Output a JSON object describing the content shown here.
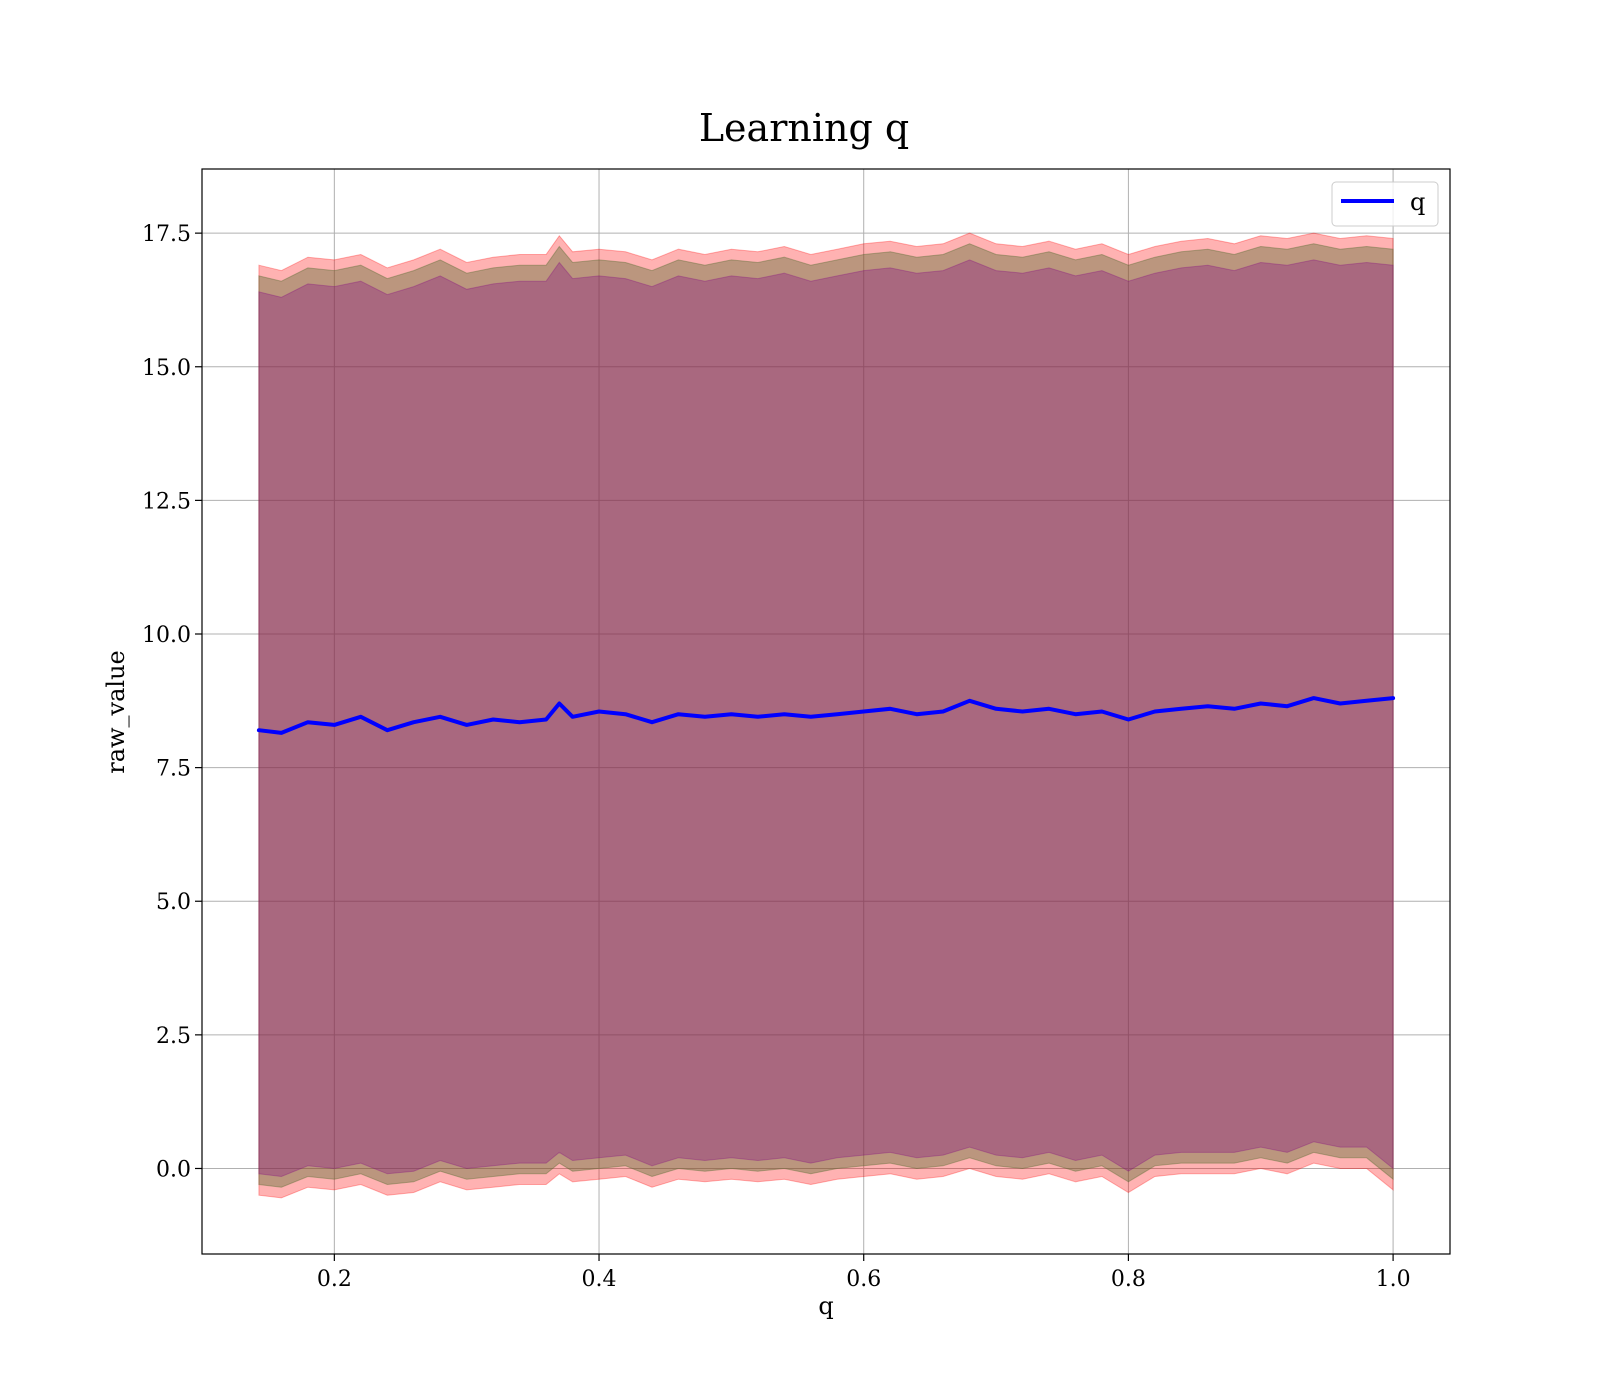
{
  "chart_data": {
    "type": "line",
    "title": "Learning q",
    "xlabel": "q",
    "ylabel": "raw_value",
    "xlim": [
      0.1,
      1.043
    ],
    "ylim": [
      -1.6,
      18.7
    ],
    "x_ticks": [
      0.2,
      0.4,
      0.6,
      0.8,
      1.0
    ],
    "x_tick_labels": [
      "0.2",
      "0.4",
      "0.6",
      "0.8",
      "1.0"
    ],
    "y_ticks": [
      0.0,
      2.5,
      5.0,
      7.5,
      10.0,
      12.5,
      15.0,
      17.5
    ],
    "y_tick_labels": [
      "0.0",
      "2.5",
      "5.0",
      "7.5",
      "10.0",
      "12.5",
      "15.0",
      "17.5"
    ],
    "grid": true,
    "legend_position": "top-right",
    "series": [
      {
        "name": "q",
        "color": "#0000ff",
        "x": [
          0.143,
          0.16,
          0.18,
          0.2,
          0.22,
          0.24,
          0.26,
          0.28,
          0.3,
          0.32,
          0.34,
          0.36,
          0.37,
          0.38,
          0.4,
          0.42,
          0.44,
          0.46,
          0.48,
          0.5,
          0.52,
          0.54,
          0.56,
          0.58,
          0.6,
          0.62,
          0.64,
          0.66,
          0.68,
          0.7,
          0.72,
          0.74,
          0.76,
          0.78,
          0.8,
          0.82,
          0.84,
          0.86,
          0.88,
          0.9,
          0.92,
          0.94,
          0.96,
          0.98,
          1.0
        ],
        "y": [
          8.2,
          8.15,
          8.35,
          8.3,
          8.45,
          8.2,
          8.35,
          8.45,
          8.3,
          8.4,
          8.35,
          8.4,
          8.7,
          8.45,
          8.55,
          8.5,
          8.35,
          8.5,
          8.45,
          8.5,
          8.45,
          8.5,
          8.45,
          8.5,
          8.55,
          8.6,
          8.5,
          8.55,
          8.75,
          8.6,
          8.55,
          8.6,
          8.5,
          8.55,
          8.4,
          8.55,
          8.6,
          8.65,
          8.6,
          8.7,
          8.65,
          8.8,
          8.7,
          8.75,
          8.8
        ]
      }
    ],
    "bands": [
      {
        "color": "#ff0000",
        "opacity": 0.3,
        "x": [
          0.143,
          0.16,
          0.18,
          0.2,
          0.22,
          0.24,
          0.26,
          0.28,
          0.3,
          0.32,
          0.34,
          0.36,
          0.37,
          0.38,
          0.4,
          0.42,
          0.44,
          0.46,
          0.48,
          0.5,
          0.52,
          0.54,
          0.56,
          0.58,
          0.6,
          0.62,
          0.64,
          0.66,
          0.68,
          0.7,
          0.72,
          0.74,
          0.76,
          0.78,
          0.8,
          0.82,
          0.84,
          0.86,
          0.88,
          0.9,
          0.92,
          0.94,
          0.96,
          0.98,
          1.0
        ],
        "lower": [
          -0.5,
          -0.55,
          -0.35,
          -0.4,
          -0.3,
          -0.5,
          -0.45,
          -0.25,
          -0.4,
          -0.35,
          -0.3,
          -0.3,
          -0.1,
          -0.25,
          -0.2,
          -0.15,
          -0.35,
          -0.2,
          -0.25,
          -0.2,
          -0.25,
          -0.2,
          -0.3,
          -0.2,
          -0.15,
          -0.1,
          -0.2,
          -0.15,
          0.0,
          -0.15,
          -0.2,
          -0.1,
          -0.25,
          -0.15,
          -0.45,
          -0.15,
          -0.1,
          -0.1,
          -0.1,
          0.0,
          -0.1,
          0.1,
          0.0,
          0.0,
          -0.4
        ],
        "upper": [
          16.9,
          16.8,
          17.05,
          17.0,
          17.1,
          16.85,
          17.0,
          17.2,
          16.95,
          17.05,
          17.1,
          17.1,
          17.45,
          17.15,
          17.2,
          17.15,
          17.0,
          17.2,
          17.1,
          17.2,
          17.15,
          17.25,
          17.1,
          17.2,
          17.3,
          17.35,
          17.25,
          17.3,
          17.5,
          17.3,
          17.25,
          17.35,
          17.2,
          17.3,
          17.1,
          17.25,
          17.35,
          17.4,
          17.3,
          17.45,
          17.4,
          17.5,
          17.4,
          17.45,
          17.4
        ]
      },
      {
        "color": "#556b2f",
        "opacity": 0.4,
        "x": [
          0.143,
          0.16,
          0.18,
          0.2,
          0.22,
          0.24,
          0.26,
          0.28,
          0.3,
          0.32,
          0.34,
          0.36,
          0.37,
          0.38,
          0.4,
          0.42,
          0.44,
          0.46,
          0.48,
          0.5,
          0.52,
          0.54,
          0.56,
          0.58,
          0.6,
          0.62,
          0.64,
          0.66,
          0.68,
          0.7,
          0.72,
          0.74,
          0.76,
          0.78,
          0.8,
          0.82,
          0.84,
          0.86,
          0.88,
          0.9,
          0.92,
          0.94,
          0.96,
          0.98,
          1.0
        ],
        "lower": [
          -0.3,
          -0.35,
          -0.15,
          -0.2,
          -0.1,
          -0.3,
          -0.25,
          -0.05,
          -0.2,
          -0.15,
          -0.1,
          -0.1,
          0.1,
          -0.05,
          0.0,
          0.05,
          -0.15,
          0.0,
          -0.05,
          0.0,
          -0.05,
          0.0,
          -0.1,
          0.0,
          0.05,
          0.1,
          0.0,
          0.05,
          0.2,
          0.05,
          0.0,
          0.1,
          -0.05,
          0.05,
          -0.25,
          0.05,
          0.1,
          0.1,
          0.1,
          0.2,
          0.1,
          0.3,
          0.2,
          0.2,
          -0.2
        ],
        "upper": [
          16.7,
          16.6,
          16.85,
          16.8,
          16.9,
          16.65,
          16.8,
          17.0,
          16.75,
          16.85,
          16.9,
          16.9,
          17.25,
          16.95,
          17.0,
          16.95,
          16.8,
          17.0,
          16.9,
          17.0,
          16.95,
          17.05,
          16.9,
          17.0,
          17.1,
          17.15,
          17.05,
          17.1,
          17.3,
          17.1,
          17.05,
          17.15,
          17.0,
          17.1,
          16.9,
          17.05,
          17.15,
          17.2,
          17.1,
          17.25,
          17.2,
          17.3,
          17.2,
          17.25,
          17.2
        ]
      },
      {
        "color": "#800080",
        "opacity": 0.3,
        "x": [
          0.143,
          0.16,
          0.18,
          0.2,
          0.22,
          0.24,
          0.26,
          0.28,
          0.3,
          0.32,
          0.34,
          0.36,
          0.37,
          0.38,
          0.4,
          0.42,
          0.44,
          0.46,
          0.48,
          0.5,
          0.52,
          0.54,
          0.56,
          0.58,
          0.6,
          0.62,
          0.64,
          0.66,
          0.68,
          0.7,
          0.72,
          0.74,
          0.76,
          0.78,
          0.8,
          0.82,
          0.84,
          0.86,
          0.88,
          0.9,
          0.92,
          0.94,
          0.96,
          0.98,
          1.0
        ],
        "lower": [
          -0.1,
          -0.15,
          0.05,
          0.0,
          0.1,
          -0.1,
          -0.05,
          0.15,
          0.0,
          0.05,
          0.1,
          0.1,
          0.3,
          0.15,
          0.2,
          0.25,
          0.05,
          0.2,
          0.15,
          0.2,
          0.15,
          0.2,
          0.1,
          0.2,
          0.25,
          0.3,
          0.2,
          0.25,
          0.4,
          0.25,
          0.2,
          0.3,
          0.15,
          0.25,
          -0.05,
          0.25,
          0.3,
          0.3,
          0.3,
          0.4,
          0.3,
          0.5,
          0.4,
          0.4,
          0.0
        ],
        "upper": [
          16.4,
          16.3,
          16.55,
          16.5,
          16.6,
          16.35,
          16.5,
          16.7,
          16.45,
          16.55,
          16.6,
          16.6,
          16.95,
          16.65,
          16.7,
          16.65,
          16.5,
          16.7,
          16.6,
          16.7,
          16.65,
          16.75,
          16.6,
          16.7,
          16.8,
          16.85,
          16.75,
          16.8,
          17.0,
          16.8,
          16.75,
          16.85,
          16.7,
          16.8,
          16.6,
          16.75,
          16.85,
          16.9,
          16.8,
          16.95,
          16.9,
          17.0,
          16.9,
          16.95,
          16.9
        ]
      }
    ]
  }
}
